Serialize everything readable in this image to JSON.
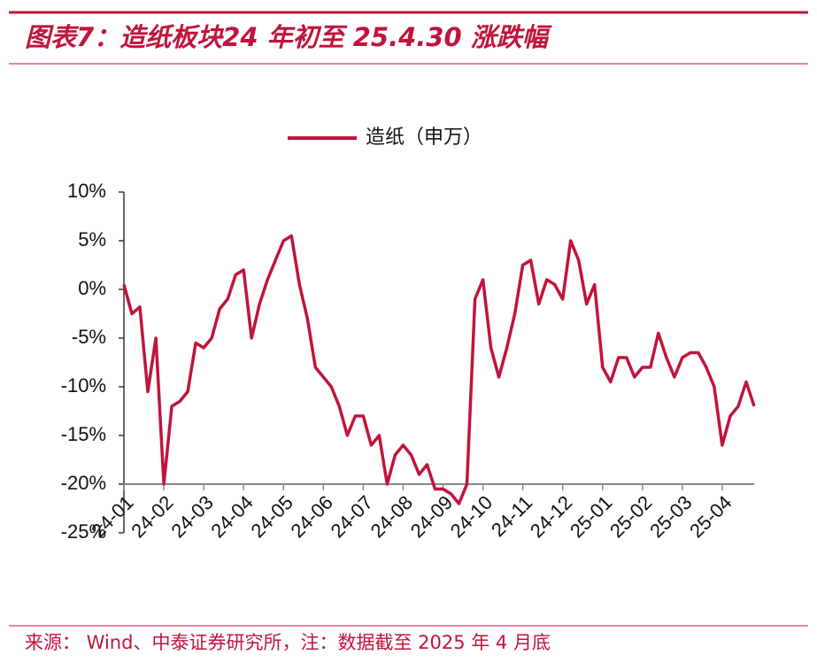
{
  "chart_data": {
    "type": "line",
    "title": "图表7：造纸板块24 年初至 25.4.30 涨跌幅",
    "source": "来源： Wind、中泰证券研究所，注：数据截至 2025 年 4 月底",
    "categories": [
      "24-01",
      null,
      null,
      null,
      null,
      "24-02",
      null,
      null,
      null,
      null,
      "24-03",
      null,
      null,
      null,
      null,
      "24-04",
      null,
      null,
      null,
      null,
      "24-05",
      null,
      null,
      null,
      null,
      "24-06",
      null,
      null,
      null,
      null,
      "24-07",
      null,
      null,
      null,
      null,
      "24-08",
      null,
      null,
      null,
      null,
      "24-09",
      null,
      null,
      null,
      null,
      "24-10",
      null,
      null,
      null,
      null,
      "24-11",
      null,
      null,
      null,
      null,
      "24-12",
      null,
      null,
      null,
      null,
      "25-01",
      null,
      null,
      null,
      null,
      "25-02",
      null,
      null,
      null,
      null,
      "25-03",
      null,
      null,
      null,
      null,
      "25-04",
      null,
      null,
      null,
      null
    ],
    "series": [
      {
        "name": "造纸（申万）",
        "color": "#c0143c",
        "values": [
          0.5,
          -2.5,
          -1.8,
          -10.5,
          -5,
          -20,
          -12,
          -11.5,
          -10.5,
          -5.5,
          -6,
          -5,
          -2,
          -1,
          1.5,
          2,
          -5,
          -1.5,
          1,
          3,
          5,
          5.5,
          0.5,
          -3,
          -8,
          -9,
          -10,
          -12,
          -15,
          -13,
          -13,
          -16,
          -15,
          -20,
          -17,
          -16,
          -17,
          -19,
          -18,
          -20.5,
          -20.5,
          -21,
          -22,
          -20,
          -1,
          1,
          -6,
          -9,
          -6,
          -2.5,
          2.5,
          3,
          -1.5,
          1,
          0.5,
          -1,
          5,
          3,
          -1.5,
          0.5,
          -8,
          -9.5,
          -7,
          -7,
          -9,
          -8,
          -8,
          -4.5,
          -7,
          -9,
          -7,
          -6.5,
          -6.5,
          -8,
          -10,
          -16,
          -13,
          -12,
          -9.5,
          -12
        ]
      }
    ],
    "ylim": [
      -25,
      10
    ],
    "yticks": [
      {
        "value": 10,
        "label": "10%"
      },
      {
        "value": 5,
        "label": "5%"
      },
      {
        "value": 0,
        "label": "0%"
      },
      {
        "value": -5,
        "label": "-5%"
      },
      {
        "value": -10,
        "label": "-10%"
      },
      {
        "value": -15,
        "label": "-15%"
      },
      {
        "value": -20,
        "label": "-20%"
      },
      {
        "value": -25,
        "label": "-25%"
      }
    ],
    "xaxis_at": -20,
    "legend": "top"
  }
}
